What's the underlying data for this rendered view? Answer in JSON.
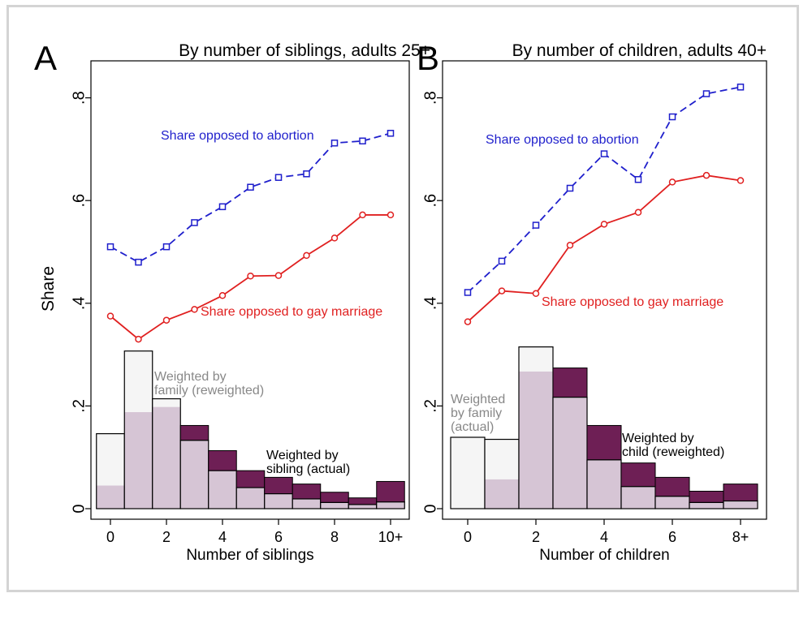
{
  "colors": {
    "abortion": "#1f1fcc",
    "gay_marriage": "#e02020",
    "bar_reweighted_fill": "#f5f5f5",
    "bar_actual_fill": "#d6c5d5",
    "bar_excess_fill": "#6e1f55",
    "bar_stroke": "#000000",
    "gray_label": "#888888",
    "frame": "#d4d4d4"
  },
  "shared": {
    "ylabel": "Share",
    "yticks": [
      0,
      0.2,
      0.4,
      0.6,
      0.8
    ],
    "ytick_labels": [
      "0",
      ".2",
      ".4",
      ".6",
      ".8"
    ],
    "ylim": [
      0,
      0.85
    ]
  },
  "chart_data": [
    {
      "panel": "A",
      "type": "bar+line",
      "title": "By number of siblings, adults 25+",
      "xlabel": "Number of siblings",
      "ylabel": "Share",
      "categories": [
        "0",
        "1",
        "2",
        "3",
        "4",
        "5",
        "6",
        "7",
        "8",
        "9",
        "10+"
      ],
      "xtick_labels": [
        "0",
        "2",
        "4",
        "6",
        "8",
        "10+"
      ],
      "xtick_positions": [
        0,
        2,
        4,
        6,
        8,
        10
      ],
      "ylim": [
        0,
        0.85
      ],
      "series": [
        {
          "name": "Share opposed to abortion",
          "kind": "line",
          "style": "dashed-square",
          "color": "#1f1fcc",
          "values": [
            0.51,
            0.48,
            0.51,
            0.557,
            0.588,
            0.626,
            0.645,
            0.652,
            0.712,
            0.716,
            0.731
          ]
        },
        {
          "name": "Share opposed to gay marriage",
          "kind": "line",
          "style": "solid-circle",
          "color": "#e02020",
          "values": [
            0.375,
            0.33,
            0.367,
            0.388,
            0.415,
            0.453,
            0.454,
            0.493,
            0.527,
            0.572,
            0.572
          ]
        },
        {
          "name": "Weighted by family (reweighted)",
          "kind": "bar",
          "values": [
            0.146,
            0.307,
            0.214,
            0.133,
            0.074,
            0.041,
            0.029,
            0.019,
            0.012,
            0.008,
            0.013
          ]
        },
        {
          "name": "Weighted by sibling (actual)",
          "kind": "bar",
          "values": [
            0.045,
            0.188,
            0.198,
            0.162,
            0.113,
            0.074,
            0.061,
            0.048,
            0.032,
            0.021,
            0.053
          ]
        }
      ],
      "annotations": {
        "abortion": "Share opposed to abortion",
        "gay_marriage": "Share opposed to gay marriage",
        "family_1": "Weighted by",
        "family_2": "family (reweighted)",
        "sibling_1": "Weighted by",
        "sibling_2": "sibling (actual)"
      }
    },
    {
      "panel": "B",
      "type": "bar+line",
      "title": "By number of children, adults 40+",
      "xlabel": "Number of children",
      "ylabel": "Share",
      "categories": [
        "0",
        "1",
        "2",
        "3",
        "4",
        "5",
        "6",
        "7",
        "8+"
      ],
      "xtick_labels": [
        "0",
        "2",
        "4",
        "6",
        "8+"
      ],
      "xtick_positions": [
        0,
        2,
        4,
        6,
        8
      ],
      "ylim": [
        0,
        0.85
      ],
      "series": [
        {
          "name": "Share opposed to abortion",
          "kind": "line",
          "style": "dashed-square",
          "color": "#1f1fcc",
          "values": [
            0.421,
            0.482,
            0.552,
            0.624,
            0.691,
            0.641,
            0.763,
            0.808,
            0.821
          ]
        },
        {
          "name": "Share opposed to gay marriage",
          "kind": "line",
          "style": "solid-circle",
          "color": "#e02020",
          "values": [
            0.364,
            0.424,
            0.419,
            0.513,
            0.554,
            0.577,
            0.636,
            0.649,
            0.639
          ]
        },
        {
          "name": "Weighted by family (actual)",
          "kind": "bar",
          "values": [
            0.139,
            0.135,
            0.315,
            0.217,
            0.095,
            0.043,
            0.024,
            0.012,
            0.015
          ]
        },
        {
          "name": "Weighted by child (reweighted)",
          "kind": "bar",
          "values": [
            0.0,
            0.057,
            0.267,
            0.274,
            0.162,
            0.089,
            0.061,
            0.034,
            0.048
          ]
        }
      ],
      "annotations": {
        "abortion": "Share opposed to abortion",
        "gay_marriage": "Share opposed to gay marriage",
        "family_1": "Weighted",
        "family_2": "by family",
        "family_3": "(actual)",
        "child_1": "Weighted by",
        "child_2": "child (reweighted)"
      }
    }
  ]
}
